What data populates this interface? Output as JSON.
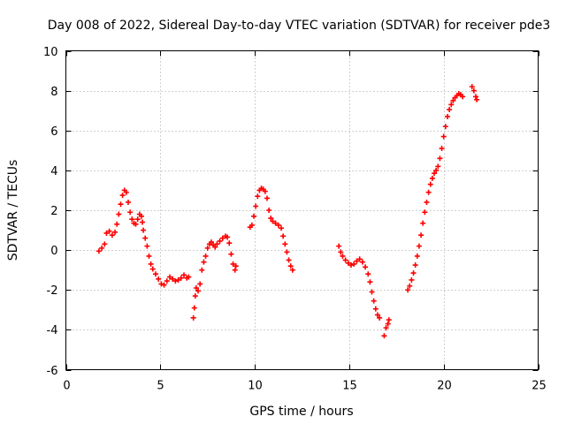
{
  "chart_data": {
    "type": "scatter",
    "title": "Day 008 of 2022, Sidereal Day-to-day VTEC variation (SDTVAR) for receiver pde3",
    "xlabel": "GPS time / hours",
    "ylabel": "SDTVAR / TECUs",
    "xlim": [
      0,
      25
    ],
    "ylim": [
      -6,
      10
    ],
    "xticks": [
      0,
      5,
      10,
      15,
      20,
      25
    ],
    "yticks": [
      -6,
      -4,
      -2,
      0,
      2,
      4,
      6,
      8,
      10
    ],
    "grid": true,
    "marker": "+",
    "color": "#ff0000",
    "series": [
      {
        "points": [
          [
            1.75,
            -0.05
          ],
          [
            1.9,
            0.1
          ],
          [
            2.05,
            0.3
          ],
          [
            2.15,
            0.85
          ],
          [
            2.3,
            0.95
          ],
          [
            2.45,
            0.75
          ],
          [
            2.6,
            0.9
          ],
          [
            2.7,
            1.3
          ],
          [
            2.8,
            1.8
          ],
          [
            2.9,
            2.3
          ],
          [
            3.0,
            2.75
          ],
          [
            3.1,
            3.0
          ],
          [
            3.2,
            2.9
          ],
          [
            3.3,
            2.4
          ],
          [
            3.4,
            1.9
          ],
          [
            3.5,
            1.55
          ],
          [
            3.6,
            1.35
          ],
          [
            3.7,
            1.3
          ],
          [
            3.8,
            1.55
          ],
          [
            3.9,
            1.8
          ],
          [
            4.0,
            1.7
          ],
          [
            4.05,
            1.4
          ],
          [
            4.1,
            1.0
          ],
          [
            4.2,
            0.6
          ],
          [
            4.3,
            0.2
          ],
          [
            4.4,
            -0.3
          ],
          [
            4.5,
            -0.7
          ],
          [
            4.6,
            -0.95
          ],
          [
            4.75,
            -1.2
          ],
          [
            4.9,
            -1.45
          ],
          [
            5.05,
            -1.7
          ],
          [
            5.2,
            -1.75
          ],
          [
            5.35,
            -1.55
          ],
          [
            5.5,
            -1.35
          ],
          [
            5.65,
            -1.45
          ],
          [
            5.8,
            -1.55
          ],
          [
            5.95,
            -1.5
          ],
          [
            6.1,
            -1.4
          ],
          [
            6.25,
            -1.25
          ],
          [
            6.4,
            -1.4
          ],
          [
            6.5,
            -1.35
          ],
          [
            6.75,
            -3.4
          ],
          [
            6.8,
            -2.9
          ],
          [
            6.85,
            -2.3
          ],
          [
            6.9,
            -1.9
          ],
          [
            7.0,
            -2.05
          ],
          [
            7.1,
            -1.7
          ],
          [
            7.2,
            -1.0
          ],
          [
            7.3,
            -0.6
          ],
          [
            7.4,
            -0.3
          ],
          [
            7.5,
            0.1
          ],
          [
            7.6,
            0.3
          ],
          [
            7.7,
            0.4
          ],
          [
            7.8,
            0.25
          ],
          [
            7.9,
            0.15
          ],
          [
            8.0,
            0.3
          ],
          [
            8.15,
            0.45
          ],
          [
            8.3,
            0.6
          ],
          [
            8.45,
            0.7
          ],
          [
            8.55,
            0.65
          ],
          [
            8.65,
            0.35
          ],
          [
            8.75,
            -0.2
          ],
          [
            8.85,
            -0.7
          ],
          [
            8.95,
            -1.0
          ],
          [
            9.0,
            -0.8
          ],
          [
            9.75,
            1.15
          ],
          [
            9.85,
            1.25
          ],
          [
            9.95,
            1.7
          ],
          [
            10.05,
            2.2
          ],
          [
            10.15,
            2.7
          ],
          [
            10.25,
            3.0
          ],
          [
            10.35,
            3.1
          ],
          [
            10.45,
            3.05
          ],
          [
            10.55,
            2.95
          ],
          [
            10.65,
            2.6
          ],
          [
            10.75,
            2.0
          ],
          [
            10.85,
            1.6
          ],
          [
            10.95,
            1.45
          ],
          [
            11.1,
            1.35
          ],
          [
            11.25,
            1.25
          ],
          [
            11.4,
            1.1
          ],
          [
            11.5,
            0.7
          ],
          [
            11.6,
            0.3
          ],
          [
            11.7,
            -0.1
          ],
          [
            11.8,
            -0.5
          ],
          [
            11.9,
            -0.8
          ],
          [
            12.0,
            -1.0
          ],
          [
            14.45,
            0.2
          ],
          [
            14.55,
            -0.1
          ],
          [
            14.65,
            -0.3
          ],
          [
            14.8,
            -0.5
          ],
          [
            14.95,
            -0.65
          ],
          [
            15.1,
            -0.75
          ],
          [
            15.25,
            -0.7
          ],
          [
            15.4,
            -0.55
          ],
          [
            15.55,
            -0.45
          ],
          [
            15.7,
            -0.6
          ],
          [
            15.85,
            -0.85
          ],
          [
            16.0,
            -1.2
          ],
          [
            16.1,
            -1.6
          ],
          [
            16.2,
            -2.1
          ],
          [
            16.3,
            -2.55
          ],
          [
            16.4,
            -2.95
          ],
          [
            16.5,
            -3.25
          ],
          [
            16.6,
            -3.4
          ],
          [
            16.85,
            -4.3
          ],
          [
            16.95,
            -3.9
          ],
          [
            17.05,
            -3.7
          ],
          [
            17.1,
            -3.5
          ],
          [
            18.1,
            -2.0
          ],
          [
            18.2,
            -1.8
          ],
          [
            18.3,
            -1.5
          ],
          [
            18.4,
            -1.15
          ],
          [
            18.5,
            -0.75
          ],
          [
            18.6,
            -0.3
          ],
          [
            18.7,
            0.2
          ],
          [
            18.8,
            0.75
          ],
          [
            18.9,
            1.35
          ],
          [
            19.0,
            1.9
          ],
          [
            19.1,
            2.4
          ],
          [
            19.2,
            2.9
          ],
          [
            19.3,
            3.3
          ],
          [
            19.4,
            3.6
          ],
          [
            19.5,
            3.85
          ],
          [
            19.6,
            4.0
          ],
          [
            19.7,
            4.2
          ],
          [
            19.8,
            4.6
          ],
          [
            19.9,
            5.1
          ],
          [
            20.0,
            5.7
          ],
          [
            20.1,
            6.2
          ],
          [
            20.2,
            6.7
          ],
          [
            20.3,
            7.05
          ],
          [
            20.4,
            7.3
          ],
          [
            20.5,
            7.5
          ],
          [
            20.6,
            7.65
          ],
          [
            20.7,
            7.75
          ],
          [
            20.8,
            7.85
          ],
          [
            20.9,
            7.8
          ],
          [
            21.0,
            7.7
          ],
          [
            21.5,
            8.2
          ],
          [
            21.6,
            8.0
          ],
          [
            21.7,
            7.7
          ],
          [
            21.75,
            7.55
          ]
        ]
      }
    ]
  }
}
